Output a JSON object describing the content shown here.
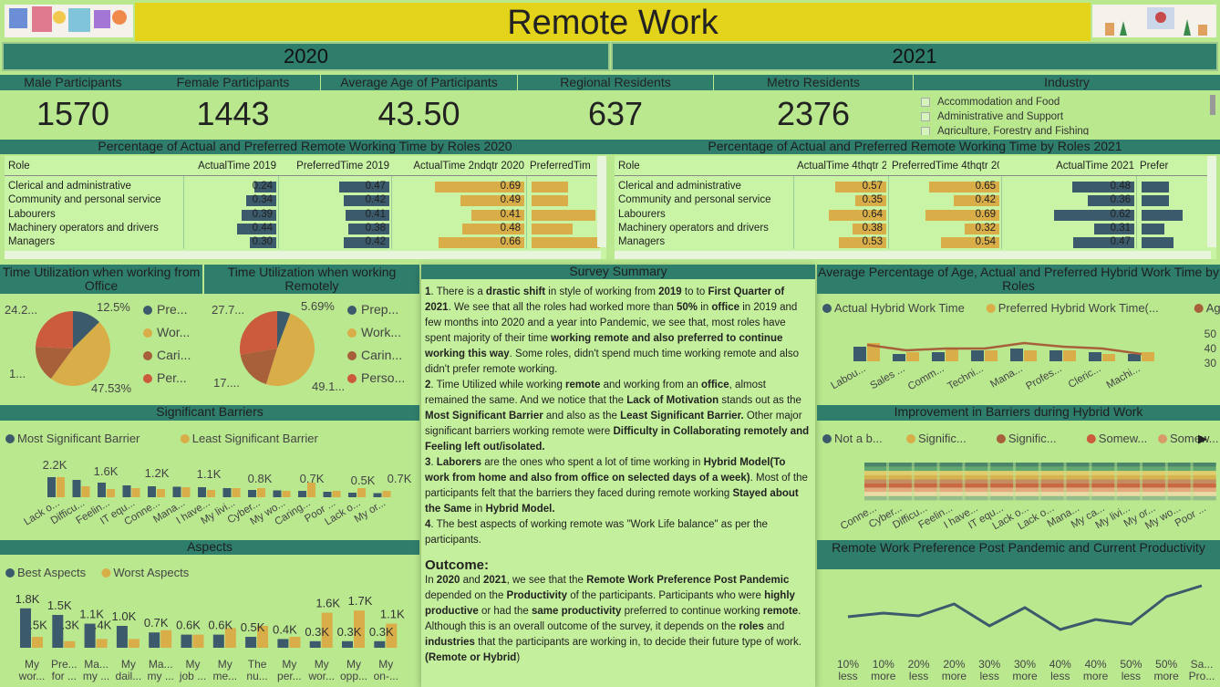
{
  "title": "Remote Work",
  "year_left": "2020",
  "year_right": "2021",
  "kpis": [
    {
      "label": "Male Participants",
      "value": "1570"
    },
    {
      "label": "Female Participants",
      "value": "1443"
    },
    {
      "label": "Average Age of Participants",
      "value": "43.50"
    },
    {
      "label": "Regional Residents",
      "value": "637"
    },
    {
      "label": "Metro Residents",
      "value": "2376"
    }
  ],
  "industry": {
    "label": "Industry",
    "items": [
      "Accommodation and Food",
      "Administrative and Support",
      "Agriculture, Forestry and Fishing"
    ]
  },
  "table2020": {
    "title": "Percentage of Actual and Preferred Remote Working Time by Roles 2020",
    "columns": [
      "Role",
      "ActualTime 2019",
      "PreferredTime 2019",
      "ActualTime 2ndqtr 2020",
      "PreferredTim"
    ],
    "rows": [
      {
        "role": "Clerical and administrative",
        "a": 0.24,
        "b": 0.47,
        "c": 0.69,
        "a_t": "0.24",
        "b_t": "0.47",
        "c_t": "0.69"
      },
      {
        "role": "Community and personal service",
        "a": 0.34,
        "b": 0.42,
        "c": 0.49,
        "a_t": "0.34",
        "b_t": "0.42",
        "c_t": "0.49"
      },
      {
        "role": "Labourers",
        "a": 0.39,
        "b": 0.41,
        "c": 0.41,
        "a_t": "0.39",
        "b_t": "0.41",
        "c_t": "0.41"
      },
      {
        "role": "Machinery operators and drivers",
        "a": 0.44,
        "b": 0.38,
        "c": 0.48,
        "a_t": "0.44",
        "b_t": "0.38",
        "c_t": "0.48"
      },
      {
        "role": "Managers",
        "a": 0.3,
        "b": 0.42,
        "c": 0.66,
        "a_t": "0.30",
        "b_t": "0.42",
        "c_t": "0.66"
      }
    ]
  },
  "table2021": {
    "title": "Percentage of Actual and Preferred Remote Working Time by Roles 2021",
    "columns": [
      "Role",
      "ActualTime 4thqtr 2020",
      "PreferredTime 4thqtr 2020",
      "ActualTime 2021",
      "Prefer"
    ],
    "rows": [
      {
        "role": "Clerical and administrative",
        "a": 0.57,
        "b": 0.65,
        "c": 0.48,
        "a_t": "0.57",
        "b_t": "0.65",
        "c_t": "0.48"
      },
      {
        "role": "Community and personal service",
        "a": 0.35,
        "b": 0.42,
        "c": 0.36,
        "a_t": "0.35",
        "b_t": "0.42",
        "c_t": "0.36"
      },
      {
        "role": "Labourers",
        "a": 0.64,
        "b": 0.69,
        "c": 0.62,
        "a_t": "0.64",
        "b_t": "0.69",
        "c_t": "0.62"
      },
      {
        "role": "Machinery operators and drivers",
        "a": 0.38,
        "b": 0.32,
        "c": 0.31,
        "a_t": "0.38",
        "b_t": "0.32",
        "c_t": "0.31"
      },
      {
        "role": "Managers",
        "a": 0.53,
        "b": 0.54,
        "c": 0.47,
        "a_t": "0.53",
        "b_t": "0.54",
        "c_t": "0.47"
      }
    ]
  },
  "pie_office": {
    "title": "Time Utilization when working from Office",
    "legend": [
      "Pre...",
      "Wor...",
      "Cari...",
      "Per..."
    ],
    "labels": [
      "24.2...",
      "12.5%",
      "1...",
      "47.53%"
    ],
    "values": [
      12.5,
      47.53,
      15.77,
      24.2
    ],
    "colors": [
      "#3b5a6b",
      "#d9ad47",
      "#a8603a",
      "#cc5a3c"
    ]
  },
  "pie_remote": {
    "title": "Time Utilization when working Remotely",
    "legend": [
      "Prep...",
      "Work...",
      "Carin...",
      "Perso..."
    ],
    "labels": [
      "27.7...",
      "5.69%",
      "17....",
      "49.1..."
    ],
    "values": [
      5.69,
      49.1,
      17.5,
      27.7
    ],
    "colors": [
      "#3b5a6b",
      "#d9ad47",
      "#a8603a",
      "#cc5a3c"
    ]
  },
  "barriers": {
    "title": "Significant Barriers",
    "legend": [
      "Most Significant Barrier",
      "Least Significant Barrier"
    ],
    "categories": [
      "Lack o...",
      "Difficu...",
      "Feelin...",
      "IT equ...",
      "Conne...",
      "Mana...",
      "I have...",
      "My livi...",
      "Cyber...",
      "My wo...",
      "Caring...",
      "Poor ...",
      "Lack o...",
      "My or..."
    ],
    "most": [
      2.2,
      1.9,
      1.6,
      1.3,
      1.2,
      1.15,
      1.1,
      1.0,
      0.8,
      0.75,
      0.7,
      0.6,
      0.5,
      0.45
    ],
    "least": [
      2.2,
      1.2,
      0.9,
      1.0,
      0.9,
      1.1,
      0.8,
      1.0,
      1.0,
      0.7,
      1.6,
      0.7,
      1.0,
      0.7
    ],
    "labels": [
      "2.2K",
      "1.6K",
      "1.2K",
      "1.1K",
      "0.8K",
      "0.7K",
      "0.5K",
      "0.7K"
    ]
  },
  "aspects": {
    "title": "Aspects",
    "legend": [
      "Best Aspects",
      "Worst Aspects"
    ],
    "categories": [
      "My wor...",
      "Pre... for ...",
      "Ma... my ...",
      "My dail...",
      "Ma... my ...",
      "My job ...",
      "My me...",
      "The nu...",
      "My per...",
      "My wor...",
      "My opp...",
      "My on-..."
    ],
    "best": [
      1.8,
      1.5,
      1.1,
      1.0,
      0.7,
      0.6,
      0.6,
      0.5,
      0.4,
      0.3,
      0.3,
      0.3
    ],
    "worst": [
      0.5,
      0.3,
      0.4,
      0.4,
      0.8,
      0.6,
      0.9,
      1.0,
      0.5,
      1.6,
      1.7,
      1.1
    ],
    "best_labels": [
      "1.8K",
      "1.5K",
      "1.1K",
      "1.0K",
      "0.7K",
      "0.6K",
      "0.6K",
      "0.5K",
      "0.4K",
      "0.3K",
      "0.3K",
      "0.3K"
    ],
    "worst_labels": [
      ".5K",
      ".3K",
      ".4K",
      "",
      "",
      "",
      "",
      "",
      "",
      "1.6K",
      "1.7K",
      "1.1K"
    ]
  },
  "survey": {
    "title": "Survey Summary",
    "outcome_title": "Outcome:"
  },
  "hybrid": {
    "title": "Average Percentage of Age, Actual and Preferred Hybrid Work Time by Roles",
    "legend": [
      "Actual Hybrid Work Time",
      "Preferred Hybrid Work Time(...",
      "Age"
    ],
    "categories": [
      "Labou...",
      "Sales ...",
      "Comm...",
      "Techni...",
      "Mana...",
      "Profes...",
      "Cleric...",
      "Machi..."
    ],
    "y_ticks": [
      "50",
      "40",
      "30"
    ]
  },
  "improvement": {
    "title": "Improvement in Barriers during Hybrid Work",
    "legend": [
      "Not a b...",
      "Signific...",
      "Signific...",
      "Somew...",
      "Somew..."
    ],
    "categories": [
      "Conne...",
      "Cyber...",
      "Difficu...",
      "Feelin...",
      "I have...",
      "IT equ...",
      "Lack o...",
      "Lack o...",
      "Mana...",
      "My ca...",
      "My livi...",
      "My or...",
      "My wo...",
      "Poor ..."
    ]
  },
  "preference": {
    "title": "Remote Work Preference Post Pandemic and Current Productivity",
    "categories": [
      "10% less",
      "10% more",
      "20% less",
      "20% more",
      "30% less",
      "30% more",
      "40% less",
      "40% more",
      "50% less",
      "50% more",
      "Sa... Pro..."
    ],
    "values": [
      30,
      34,
      31,
      44,
      20,
      40,
      16,
      27,
      22,
      52,
      64
    ]
  },
  "colors": {
    "blue": "#3b5a6b",
    "gold": "#d9ad47",
    "header": "#2f7e6c",
    "title": "#e3d31a",
    "bg": "#b9e88f"
  }
}
